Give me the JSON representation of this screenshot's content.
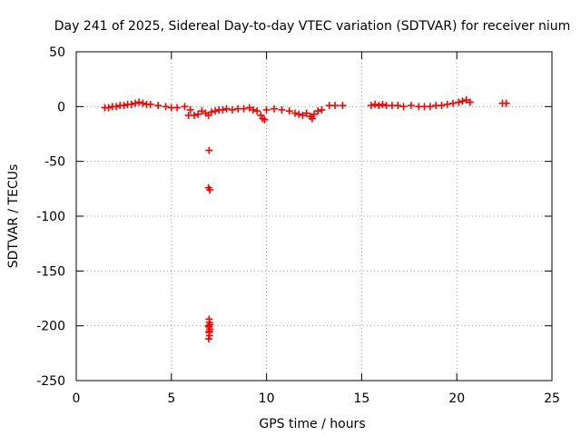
{
  "chart_data": {
    "type": "scatter",
    "title": "Day 241 of 2025, Sidereal Day-to-day VTEC variation (SDTVAR) for receiver nium",
    "xlabel": "GPS time / hours",
    "ylabel": "SDTVAR / TECUs",
    "xlim": [
      0,
      25
    ],
    "ylim": [
      -250,
      50
    ],
    "xticks": [
      0,
      5,
      10,
      15,
      20,
      25
    ],
    "yticks": [
      -250,
      -200,
      -150,
      -100,
      -50,
      0,
      50
    ],
    "grid": true,
    "marker": "+",
    "color": "#ff0000",
    "series": [
      {
        "name": "SDTVAR",
        "x": [
          1.5,
          1.7,
          1.9,
          2.1,
          2.3,
          2.5,
          2.7,
          2.9,
          3.1,
          3.3,
          3.5,
          3.7,
          3.9,
          4.3,
          4.7,
          5.0,
          5.3,
          5.7,
          5.9,
          6.0,
          6.2,
          6.4,
          6.6,
          6.8,
          6.95,
          7.1,
          7.3,
          7.5,
          7.7,
          7.9,
          8.2,
          8.5,
          8.8,
          9.1,
          9.3,
          9.5,
          9.7,
          9.8,
          9.9,
          10.0,
          10.4,
          10.8,
          11.2,
          11.5,
          11.7,
          11.9,
          12.1,
          12.3,
          12.4,
          12.5,
          12.7,
          12.9,
          13.3,
          13.6,
          14.0,
          15.5,
          15.7,
          15.9,
          16.1,
          16.3,
          16.6,
          16.9,
          17.2,
          17.6,
          18.0,
          18.3,
          18.6,
          18.9,
          19.2,
          19.5,
          19.8,
          20.1,
          20.3,
          20.5,
          20.7,
          22.4,
          22.6,
          6.98,
          6.95,
          7.02,
          6.98,
          7.0,
          6.95,
          7.02,
          6.97,
          7.0,
          6.96,
          7.03,
          6.98,
          7.0
        ],
        "y": [
          -1,
          -1,
          0,
          0,
          1,
          1,
          2,
          2,
          3,
          4,
          3,
          2,
          2,
          1,
          0,
          -1,
          -1,
          0,
          -8,
          -3,
          -8,
          -7,
          -4,
          -6,
          -8,
          -5,
          -4,
          -3,
          -3,
          -2,
          -3,
          -2,
          -2,
          -1,
          -3,
          -4,
          -8,
          -11,
          -12,
          -3,
          -2,
          -3,
          -4,
          -6,
          -7,
          -8,
          -6,
          -9,
          -11,
          -7,
          -4,
          -3,
          1,
          1,
          1,
          1,
          2,
          1,
          2,
          1,
          1,
          1,
          0,
          1,
          0,
          0,
          0,
          1,
          1,
          2,
          3,
          4,
          5,
          6,
          4,
          3,
          3,
          -40,
          -74,
          -76,
          -194,
          -197,
          -200,
          -203,
          -206,
          -209,
          -212,
          -199,
          -201,
          -205
        ]
      }
    ]
  }
}
